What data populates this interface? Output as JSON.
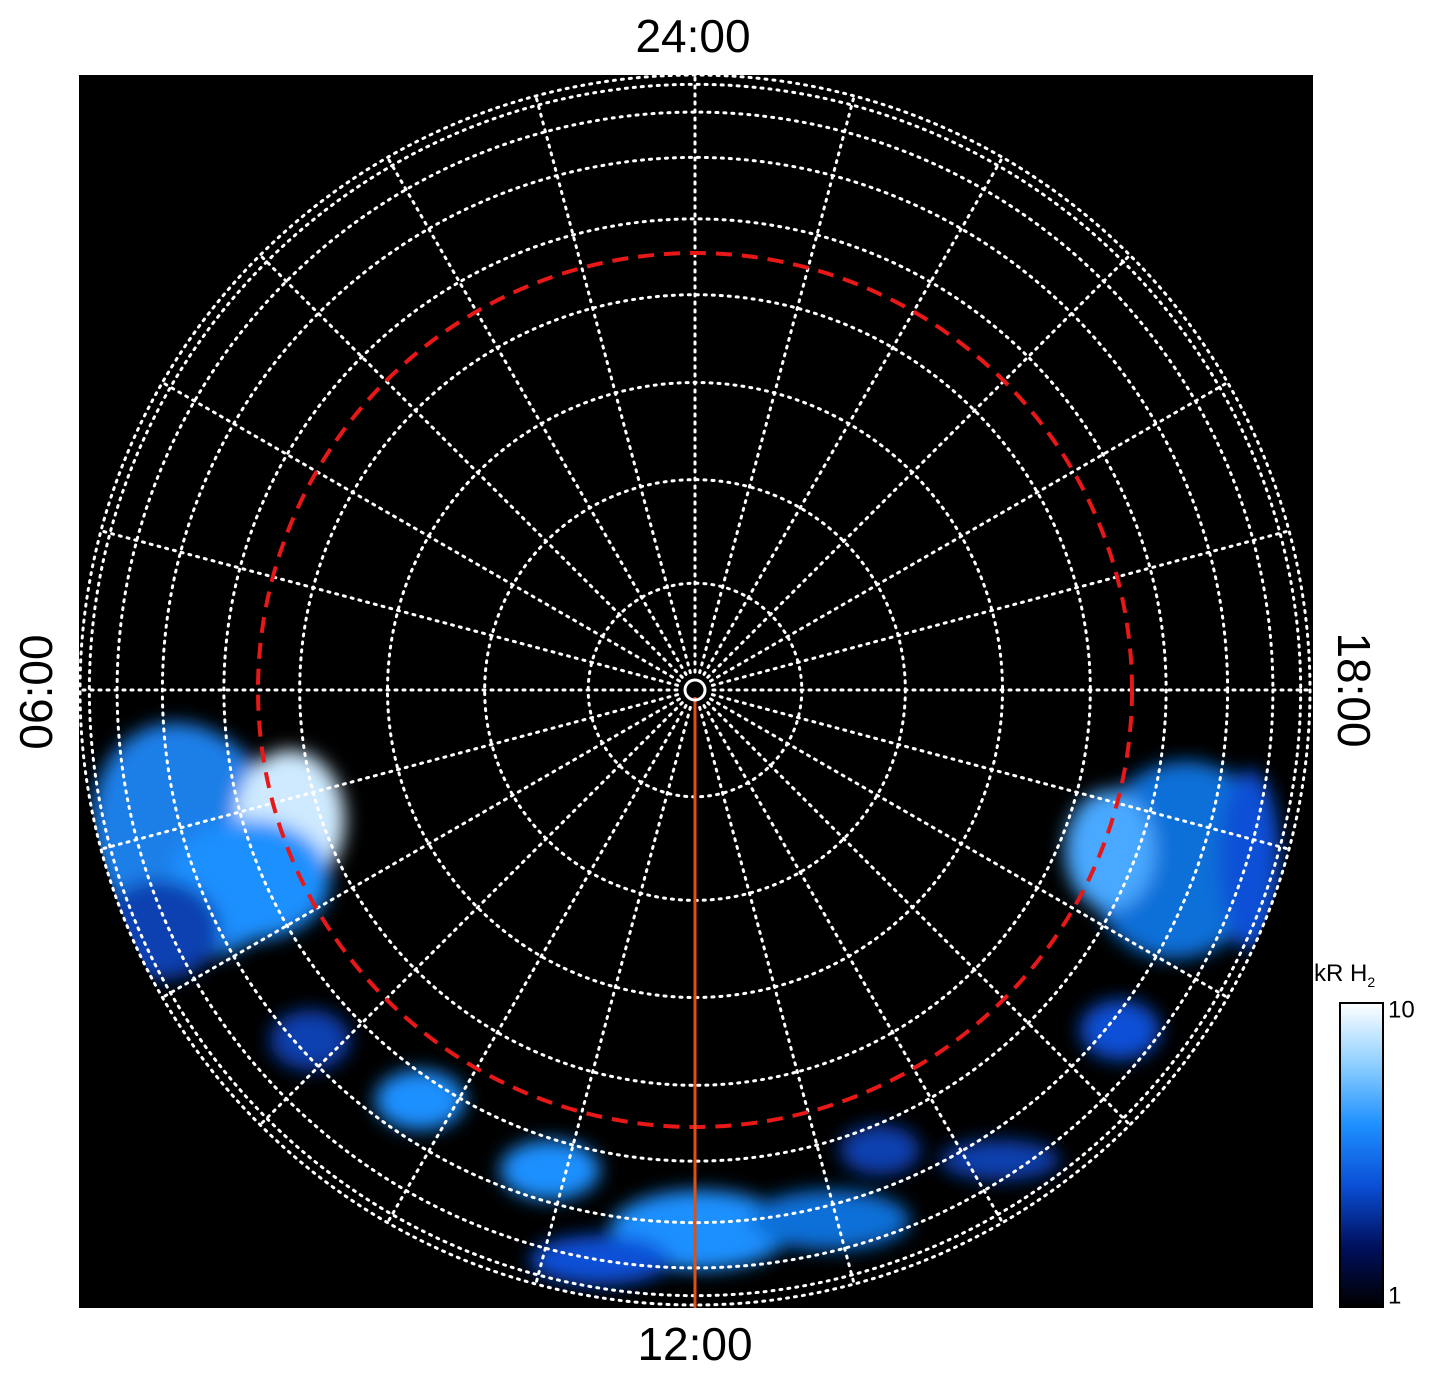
{
  "chart_data": {
    "type": "polar-image",
    "angle_labels": {
      "top": "24:00",
      "bottom": "12:00",
      "left": "06:00",
      "right": "18:00"
    },
    "colorbar": {
      "label": "kR H",
      "label_sub": "2",
      "lim": [
        1,
        10
      ],
      "ticks": [
        1,
        10
      ],
      "log": true,
      "colors": [
        "#000000",
        "#00105e",
        "#0a4fd6",
        "#1e90ff",
        "#8fd0ff",
        "#ffffff"
      ]
    },
    "reference_circle_color": "#e81818",
    "meridian_line_color": "#e05010"
  }
}
